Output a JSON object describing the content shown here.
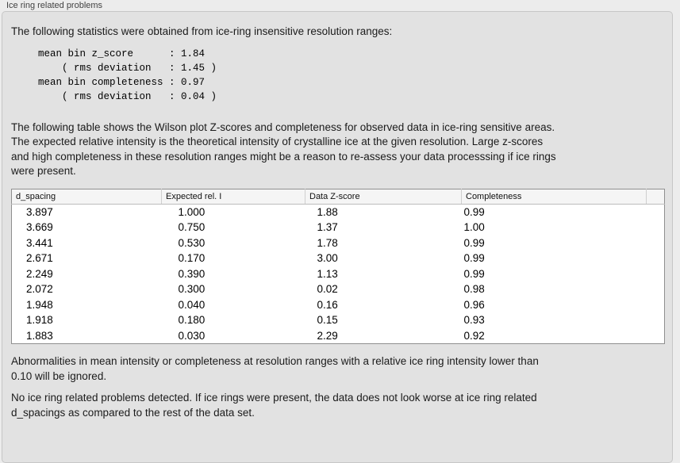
{
  "panel": {
    "title": "Ice ring related problems"
  },
  "colors": {
    "window_bg": "#ececec",
    "panel_bg": "#e2e2e2",
    "panel_border": "#c6c6c6",
    "table_border": "#8f8f8f",
    "table_header_bg": "#f5f5f5"
  },
  "intro_text": "The following statistics were obtained from ice-ring insensitive resolution ranges:",
  "stats_block": [
    "mean bin z_score      : 1.84",
    "    ( rms deviation   : 1.45 )",
    "mean bin completeness : 0.97",
    "    ( rms deviation   : 0.04 )"
  ],
  "table_description": [
    "The following table shows the Wilson plot Z-scores and completeness for observed data in ice-ring sensitive areas.",
    "The expected relative intensity is the theoretical intensity of crystalline ice at the given resolution. Large z-scores",
    "and high completeness in these resolution ranges might be a reason to re-assess your data processsing if ice rings",
    "were present."
  ],
  "table": {
    "headers": [
      "d_spacing",
      "Expected rel. I",
      "Data Z-score",
      "Completeness",
      ""
    ],
    "rows": [
      [
        "3.897",
        "1.000",
        "1.88",
        "0.99"
      ],
      [
        "3.669",
        "0.750",
        "1.37",
        "1.00"
      ],
      [
        "3.441",
        "0.530",
        "1.78",
        "0.99"
      ],
      [
        "2.671",
        "0.170",
        "3.00",
        "0.99"
      ],
      [
        "2.249",
        "0.390",
        "1.13",
        "0.99"
      ],
      [
        "2.072",
        "0.300",
        "0.02",
        "0.98"
      ],
      [
        "1.948",
        "0.040",
        "0.16",
        "0.96"
      ],
      [
        "1.918",
        "0.180",
        "0.15",
        "0.93"
      ],
      [
        "1.883",
        "0.030",
        "2.29",
        "0.92"
      ]
    ]
  },
  "note_ignore": [
    "Abnormalities in mean intensity or completeness at resolution ranges with a relative ice ring intensity lower than",
    "0.10 will be ignored."
  ],
  "conclusion": [
    "No ice ring related problems detected. If ice rings were present, the data does not look worse at ice ring related",
    "d_spacings as compared to the rest of the data set."
  ]
}
